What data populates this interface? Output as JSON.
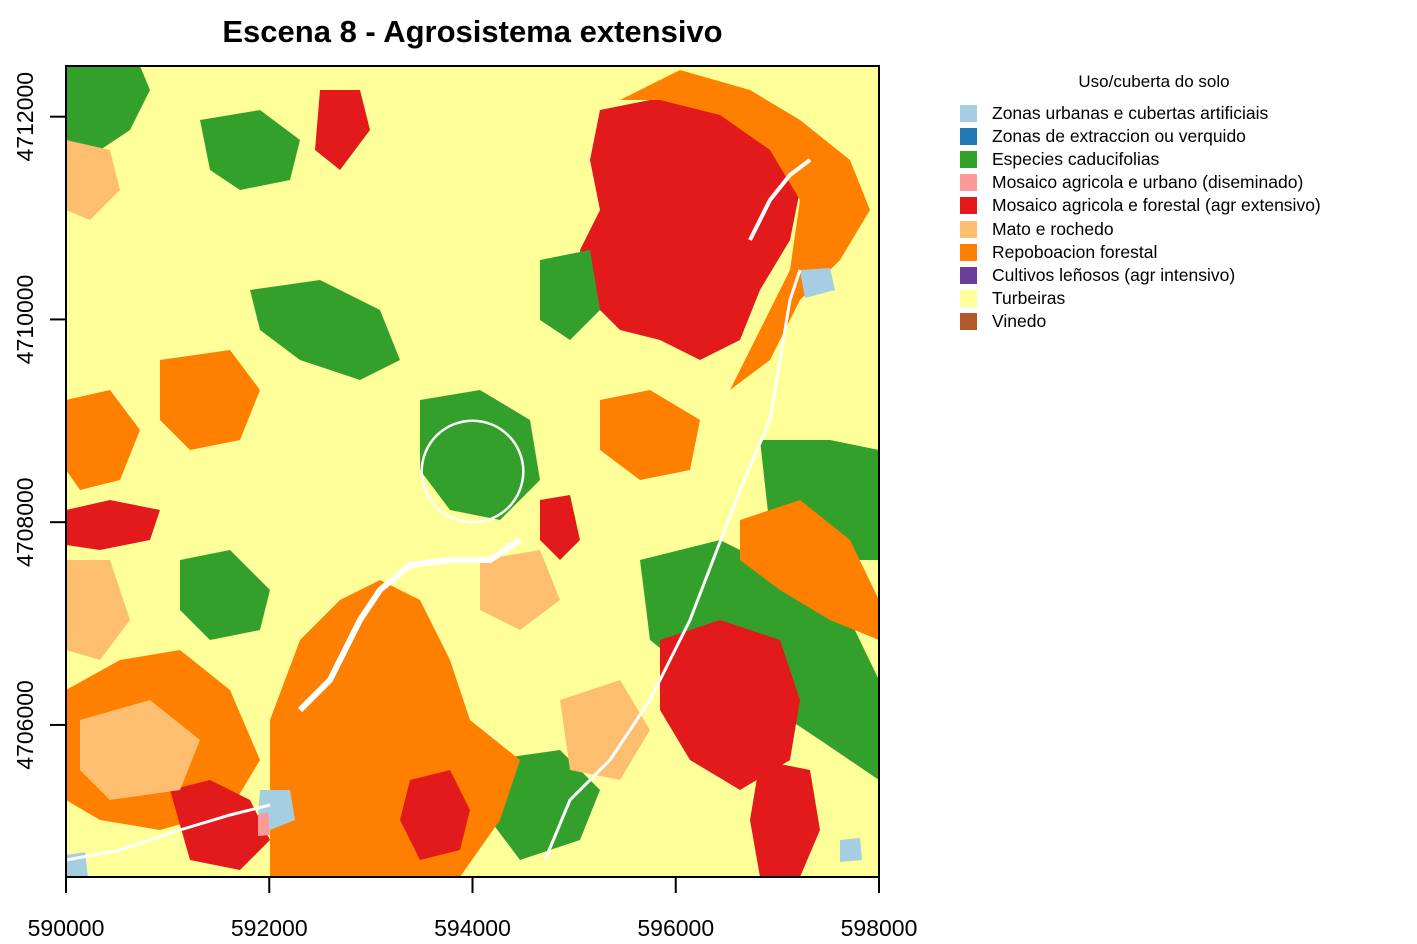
{
  "title": "Escena 8 - Agrosistema extensivo",
  "chart_data": {
    "type": "map-raster",
    "title": "Escena 8 - Agrosistema extensivo",
    "x_ticks": [
      590000,
      592000,
      594000,
      596000,
      598000
    ],
    "y_ticks": [
      4706000,
      4708000,
      4710000,
      4712000
    ],
    "x_tick_labels": [
      "590000",
      "592000",
      "594000",
      "596000",
      "598000"
    ],
    "y_tick_labels": [
      "4706000",
      "4708000",
      "4710000",
      "4712000"
    ],
    "xlim": [
      590000,
      598000
    ],
    "ylim": [
      4704500,
      4712500
    ],
    "legend_title": "Uso/cuberta do solo",
    "legend_position": "right",
    "classes": [
      {
        "name": "Zonas urbanas e cubertas artificiais",
        "color": "#a6cee3"
      },
      {
        "name": "Zonas de extraccion ou verquido",
        "color": "#1f78b4"
      },
      {
        "name": "Especies caducifolias",
        "color": "#33a02c"
      },
      {
        "name": "Mosaico agricola e urbano (diseminado)",
        "color": "#fb9a99"
      },
      {
        "name": "Mosaico agricola e forestal (agr extensivo)",
        "color": "#e31a1c"
      },
      {
        "name": "Mato e rochedo",
        "color": "#fdbf6f"
      },
      {
        "name": "Repoboacion forestal",
        "color": "#ff7f00"
      },
      {
        "name": "Cultivos leñosos (agr intensivo)",
        "color": "#6a3d9a"
      },
      {
        "name": "Turbeiras",
        "color": "#ffff99"
      },
      {
        "name": "Vinedo",
        "color": "#b15928"
      }
    ],
    "circle_center": [
      594000,
      4708500
    ],
    "circle_radius": 500
  }
}
